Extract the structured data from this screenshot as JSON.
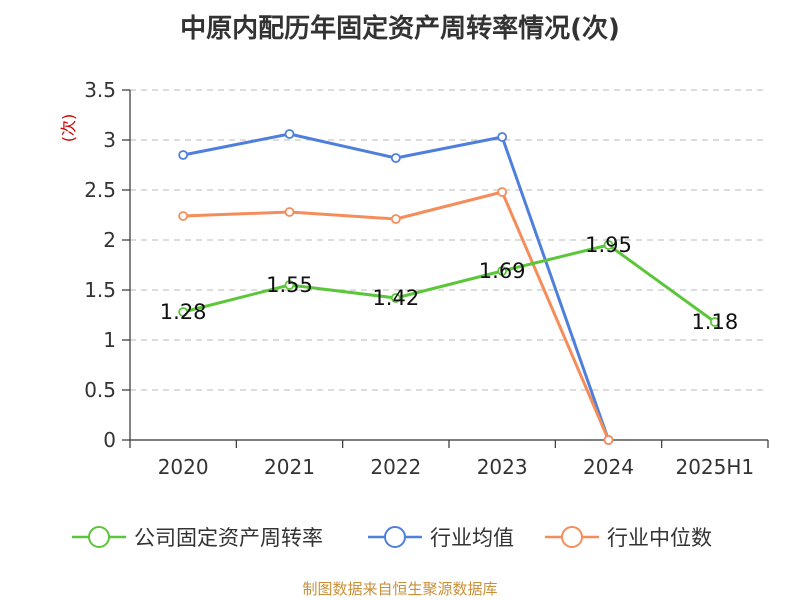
{
  "title": "中原内配历年固定资产周转率情况(次)",
  "footer": "制图数据来自恒生聚源数据库",
  "chart_data": {
    "type": "line",
    "title": "中原内配历年固定资产周转率情况(次)",
    "ylabel": "(次)",
    "xlabel": "",
    "categories": [
      "2020",
      "2021",
      "2022",
      "2023",
      "2024",
      "2025H1"
    ],
    "ylim": [
      0,
      3.5
    ],
    "yticks": [
      "0",
      "0.5",
      "1",
      "1.5",
      "2",
      "2.5",
      "3",
      "3.5"
    ],
    "grid": true,
    "legend_position": "bottom",
    "series": [
      {
        "name": "公司固定资产周转率",
        "color": "#5cc63a",
        "values": [
          1.28,
          1.55,
          1.42,
          1.69,
          1.95,
          1.18
        ],
        "labels": [
          "1.28",
          "1.55",
          "1.42",
          "1.69",
          "1.95",
          "1.18"
        ]
      },
      {
        "name": "行业均值",
        "color": "#4f7fdc",
        "values": [
          2.85,
          3.06,
          2.82,
          3.03,
          0.0,
          null
        ]
      },
      {
        "name": "行业中位数",
        "color": "#f58d5b",
        "values": [
          2.24,
          2.28,
          2.21,
          2.48,
          0.0,
          null
        ]
      }
    ]
  }
}
